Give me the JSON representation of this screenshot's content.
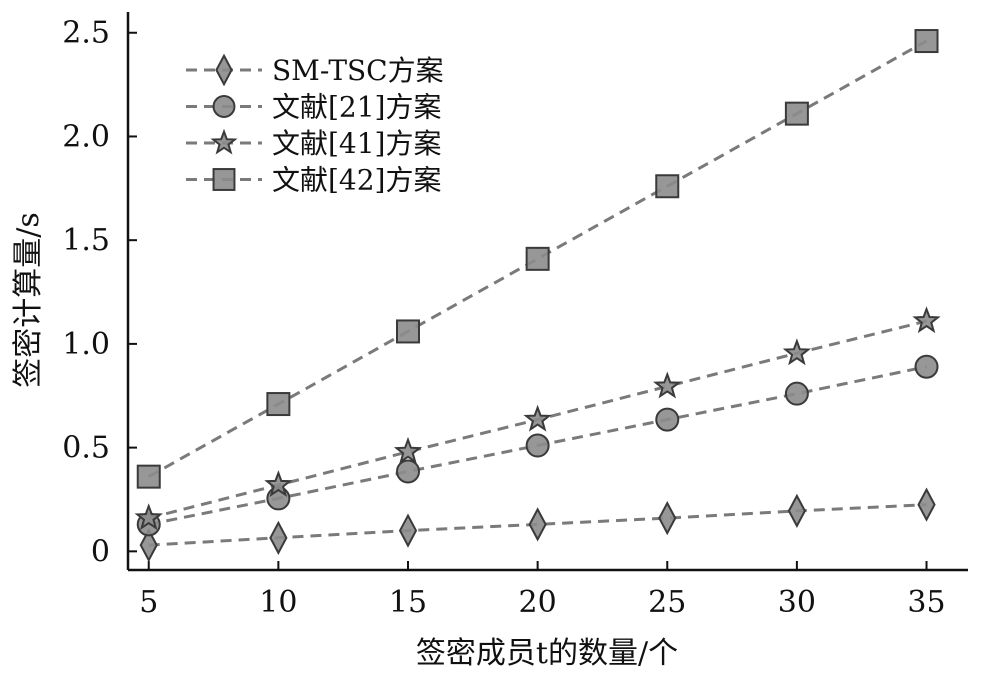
{
  "chart_data": {
    "type": "line",
    "xlabel": "签密成员t的数量/个",
    "ylabel": "签密计算量/s",
    "x": [
      5,
      10,
      15,
      20,
      25,
      30,
      35
    ],
    "xlim": [
      4.2,
      36.6
    ],
    "ylim": [
      -0.09,
      2.6
    ],
    "xticks": [
      5,
      10,
      15,
      20,
      25,
      30,
      35
    ],
    "yticks": [
      0,
      0.5,
      1.0,
      1.5,
      2.0,
      2.5
    ],
    "ytick_labels": [
      "0",
      "0.5",
      "1.0",
      "1.5",
      "2.0",
      "2.5"
    ],
    "grid": false,
    "legend_position": "top-left",
    "line_color": "#7a7a7a",
    "marker_fill": "#8c8c8c",
    "marker_edge": "#3a3a3a",
    "series": [
      {
        "name": "SM-TSC方案",
        "marker": "diamond",
        "values": [
          0.03,
          0.065,
          0.1,
          0.13,
          0.16,
          0.195,
          0.225
        ]
      },
      {
        "name": "文献[21]方案",
        "marker": "circle",
        "values": [
          0.13,
          0.255,
          0.385,
          0.51,
          0.635,
          0.76,
          0.89
        ]
      },
      {
        "name": "文献[41]方案",
        "marker": "star",
        "values": [
          0.16,
          0.32,
          0.48,
          0.635,
          0.795,
          0.955,
          1.11
        ]
      },
      {
        "name": "文献[42]方案",
        "marker": "square",
        "values": [
          0.36,
          0.71,
          1.06,
          1.41,
          1.76,
          2.11,
          2.46
        ]
      }
    ]
  }
}
